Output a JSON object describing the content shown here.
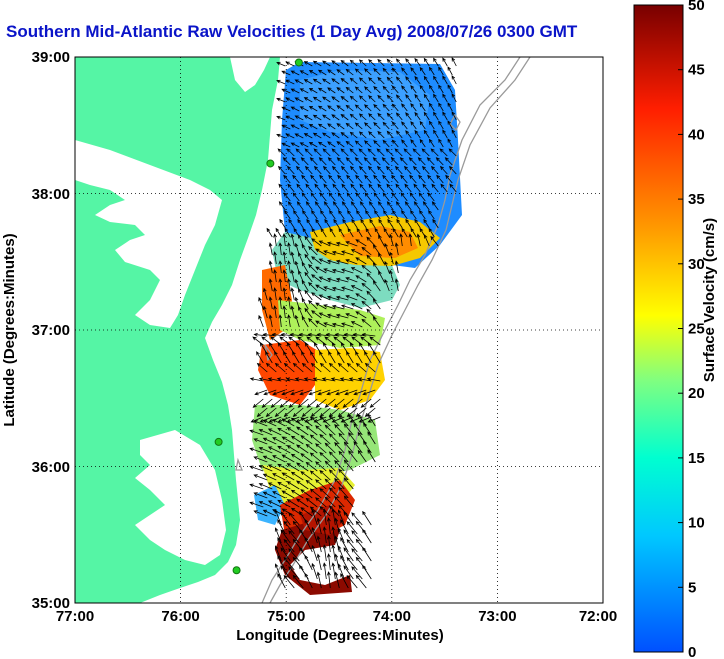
{
  "title": "Southern Mid-Atlantic Raw Velocities (1 Day Avg) 2008/07/26 0300 GMT",
  "x_axis": {
    "label": "Longitude (Degrees:Minutes)",
    "ticks": [
      "77:00",
      "76:00",
      "75:00",
      "74:00",
      "73:00",
      "72:00"
    ],
    "range": [
      -77,
      -72
    ]
  },
  "y_axis": {
    "label": "Latitude (Degrees:Minutes)",
    "ticks": [
      "35:00",
      "36:00",
      "37:00",
      "38:00",
      "39:00"
    ],
    "range": [
      35,
      39
    ]
  },
  "colorbar": {
    "label": "Surface Velocity (cm/s)",
    "ticks": [
      "0",
      "5",
      "10",
      "15",
      "20",
      "25",
      "30",
      "35",
      "40",
      "45",
      "50"
    ],
    "range": [
      0,
      50
    ],
    "colors": [
      "#0050ff",
      "#00c8ff",
      "#00ffd0",
      "#80ff80",
      "#ffff00",
      "#ff9600",
      "#ff1e00",
      "#780000"
    ]
  },
  "colors": {
    "land": "#55f5a5",
    "water": "#ffffff",
    "title": "#0a14c8",
    "isobath": "#9a9a9a",
    "station": "#22cc22"
  },
  "grid": true,
  "stations": [
    {
      "lon": -74.88,
      "lat": 38.96
    },
    {
      "lon": -75.15,
      "lat": 38.22
    },
    {
      "lon": -75.64,
      "lat": 36.18
    },
    {
      "lon": -75.47,
      "lat": 35.24
    }
  ]
}
